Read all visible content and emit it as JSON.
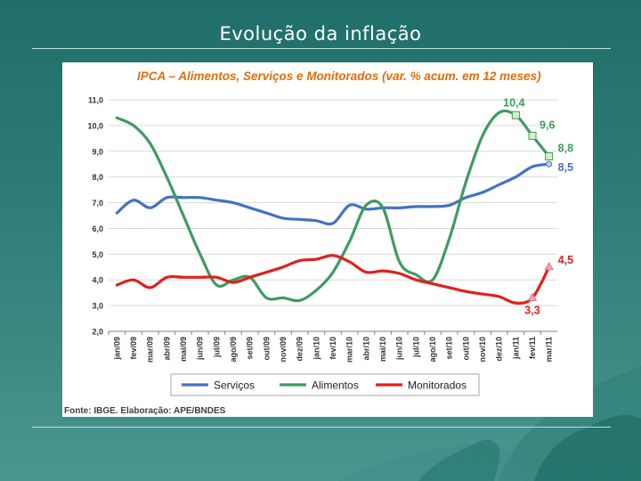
{
  "slide": {
    "title": "Evolução da inflação"
  },
  "colors": {
    "servicos": "#4472c4",
    "alimentos": "#3e9b62",
    "monitorados": "#e0201b",
    "title_orange": "#e36c09",
    "grid": "#d9d9d9"
  },
  "chart_data": {
    "type": "line",
    "title": "IPCA – Alimentos, Serviços e Monitorados  (var. % acum. em 12  meses)",
    "source": "Fonte: IBGE. Elaboração: APE/BNDES",
    "xlabel": "",
    "ylabel": "",
    "ylim": [
      2.0,
      11.0
    ],
    "yticks": [
      "2,0",
      "3,0",
      "4,0",
      "5,0",
      "6,0",
      "7,0",
      "8,0",
      "9,0",
      "10,0",
      "11,0"
    ],
    "categories": [
      "jan/09",
      "fev/09",
      "mar/09",
      "abr/09",
      "mai/09",
      "jun/09",
      "jul/09",
      "ago/09",
      "set/09",
      "out/09",
      "nov/09",
      "dez/09",
      "jan/10",
      "fev/10",
      "mar/10",
      "abr/10",
      "mai/10",
      "jun/10",
      "jul/10",
      "ago/10",
      "set/10",
      "out/10",
      "nov/10",
      "dez/10",
      "jan/11",
      "fev/11",
      "mar/11"
    ],
    "series": [
      {
        "name": "Serviços",
        "color": "#4472c4",
        "values": [
          6.6,
          7.1,
          6.8,
          7.2,
          7.2,
          7.2,
          7.1,
          7.0,
          6.8,
          6.6,
          6.4,
          6.35,
          6.3,
          6.2,
          6.9,
          6.75,
          6.8,
          6.8,
          6.85,
          6.85,
          6.9,
          7.2,
          7.4,
          7.7,
          8.0,
          8.4,
          8.5
        ]
      },
      {
        "name": "Alimentos",
        "color": "#3e9b62",
        "values": [
          10.3,
          10.0,
          9.3,
          8.0,
          6.5,
          5.0,
          3.8,
          4.0,
          4.1,
          3.3,
          3.3,
          3.2,
          3.6,
          4.3,
          5.5,
          6.9,
          6.8,
          4.7,
          4.2,
          4.0,
          5.6,
          7.8,
          9.6,
          10.5,
          10.4,
          9.6,
          8.8
        ]
      },
      {
        "name": "Monitorados",
        "color": "#e0201b",
        "values": [
          3.8,
          4.0,
          3.7,
          4.1,
          4.1,
          4.1,
          4.1,
          3.9,
          4.1,
          4.3,
          4.5,
          4.75,
          4.8,
          4.95,
          4.7,
          4.3,
          4.35,
          4.25,
          4.0,
          3.85,
          3.7,
          3.55,
          3.45,
          3.35,
          3.1,
          3.3,
          4.5
        ]
      }
    ],
    "annotations": [
      {
        "text": "10,4",
        "series": "Alimentos",
        "index": 24,
        "value": 10.4
      },
      {
        "text": "9,6",
        "series": "Alimentos",
        "index": 25,
        "value": 9.6
      },
      {
        "text": "8,8",
        "series": "Alimentos",
        "index": 26,
        "value": 8.8
      },
      {
        "text": "8,5",
        "series": "Serviços",
        "index": 26,
        "value": 8.5
      },
      {
        "text": "4,5",
        "series": "Monitorados",
        "index": 26,
        "value": 4.5
      },
      {
        "text": "3,3",
        "series": "Monitorados",
        "index": 25,
        "value": 3.3
      }
    ],
    "legend": {
      "placement": "bottom",
      "entries": [
        "Serviços",
        "Alimentos",
        "Monitorados"
      ]
    },
    "grid": true
  }
}
